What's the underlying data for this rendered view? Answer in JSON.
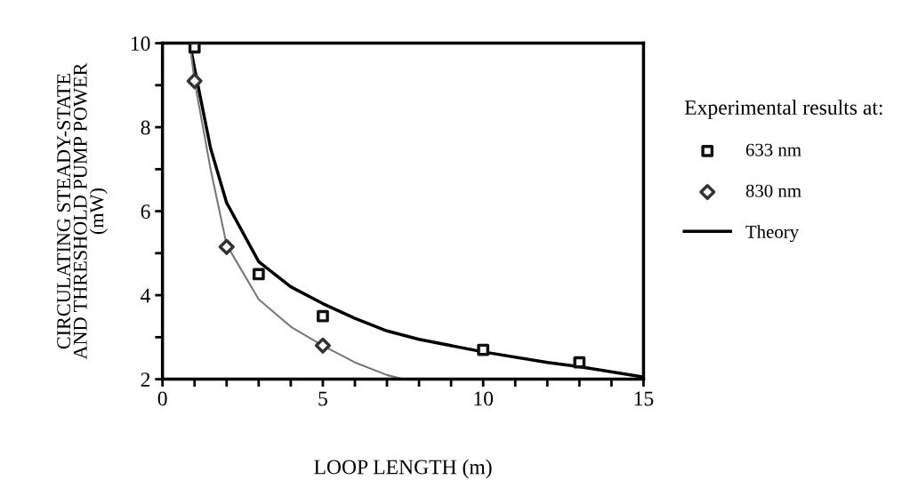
{
  "chart_data": {
    "type": "scatter",
    "xlabel": "LOOP LENGTH (m)",
    "ylabel": "CIRCULATING STEADY-STATE\nAND THRESHOLD PUMP POWER\n(mW)",
    "legend_title": "Experimental results at:",
    "legend": "right",
    "grid": false,
    "xlim": [
      0,
      15
    ],
    "ylim": [
      2,
      10
    ],
    "xticks": [
      0,
      {
        "value": 1,
        "label": null
      },
      {
        "value": 2,
        "label": null
      },
      {
        "value": 3,
        "label": null
      },
      {
        "value": 4,
        "label": null
      },
      5,
      {
        "value": 6,
        "label": null
      },
      {
        "value": 7,
        "label": null
      },
      {
        "value": 8,
        "label": null
      },
      {
        "value": 9,
        "label": null
      },
      10,
      {
        "value": 11,
        "label": null
      },
      {
        "value": 12,
        "label": null
      },
      {
        "value": 13,
        "label": null
      },
      {
        "value": 14,
        "label": null
      },
      15
    ],
    "yticks": [
      2,
      {
        "value": 3,
        "label": null
      },
      4,
      {
        "value": 5,
        "label": null
      },
      6,
      {
        "value": 7,
        "label": null
      },
      8,
      {
        "value": 9,
        "label": null
      },
      10
    ],
    "series": [
      {
        "name": "633 nm",
        "marker": "square",
        "color": "#111111",
        "x": [
          1,
          3,
          5,
          10,
          13
        ],
        "values": [
          9.9,
          4.5,
          3.5,
          2.7,
          2.4
        ]
      },
      {
        "name": "830 nm",
        "marker": "diamond",
        "color": "#333333",
        "x": [
          1,
          2,
          5
        ],
        "values": [
          9.1,
          5.15,
          2.8
        ]
      },
      {
        "name": "Theory",
        "type": "line",
        "marker": "none",
        "line_style": "solid",
        "color": "#000000",
        "x": [
          0.85,
          1,
          1.5,
          2,
          3,
          4,
          5,
          6,
          7,
          8,
          10,
          12,
          13,
          15
        ],
        "values": [
          10,
          9.4,
          7.5,
          6.2,
          4.8,
          4.2,
          3.8,
          3.45,
          3.15,
          2.95,
          2.65,
          2.4,
          2.3,
          2.05
        ]
      },
      {
        "type": "line",
        "marker": "none",
        "line_style": "solid",
        "color": "#777777",
        "x": [
          0.85,
          1,
          1.5,
          2,
          3,
          4,
          5,
          6,
          7,
          7.5
        ],
        "values": [
          10,
          9.1,
          7.0,
          5.2,
          3.9,
          3.25,
          2.8,
          2.4,
          2.1,
          2.0
        ]
      }
    ]
  }
}
